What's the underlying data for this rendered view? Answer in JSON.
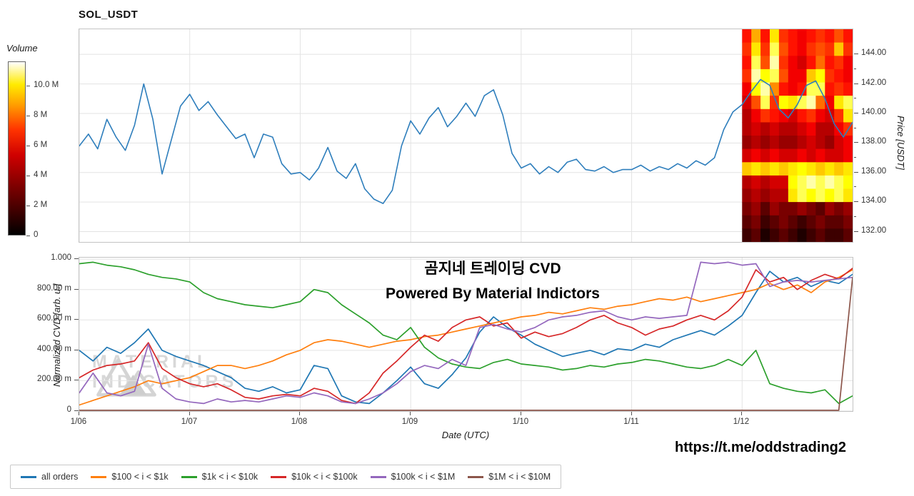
{
  "title": "SOL_USDT",
  "overlay": {
    "line1": "곰지네 트레이딩 CVD",
    "line2": "Powered By Material Indictors"
  },
  "footer": {
    "url": "https://t.me/oddstrading2"
  },
  "watermark": {
    "line1": "MATERIAL",
    "line2": "INDICATORS"
  },
  "chart_data": [
    {
      "type": "line",
      "title": "SOL_USDT price with volume heatmap overlay",
      "ylabel": "Price [USDT]",
      "ylim": [
        131.3,
        145.7
      ],
      "ytick_labels": [
        "132.00",
        "134.00",
        "136.00",
        "138.00",
        "140.00",
        "142.00",
        "144.00"
      ],
      "ytick_values": [
        132,
        134,
        136,
        138,
        140,
        142,
        144
      ],
      "x_range_days": [
        0,
        7
      ],
      "grid": true,
      "series": [
        {
          "name": "SOL_USDT price",
          "color": "#2e7ebc",
          "values": [
            137.8,
            138.6,
            137.6,
            139.6,
            138.4,
            137.5,
            139.2,
            142.0,
            139.6,
            135.9,
            138.2,
            140.5,
            141.3,
            140.2,
            140.8,
            139.9,
            139.1,
            138.3,
            138.6,
            137.0,
            138.6,
            138.4,
            136.6,
            135.9,
            136.0,
            135.5,
            136.3,
            137.7,
            136.1,
            135.6,
            136.6,
            134.9,
            134.2,
            133.9,
            134.8,
            137.8,
            139.5,
            138.6,
            139.7,
            140.4,
            139.1,
            139.8,
            140.7,
            139.8,
            141.2,
            141.6,
            139.9,
            137.3,
            136.3,
            136.6,
            135.9,
            136.4,
            136.0,
            136.7,
            136.9,
            136.2,
            136.1,
            136.4,
            136.0,
            136.2,
            136.2,
            136.5,
            136.1,
            136.4,
            136.2,
            136.6,
            136.3,
            136.8,
            136.5,
            137.0,
            138.9,
            140.1,
            140.6,
            141.5,
            142.3,
            141.9,
            140.3,
            139.7,
            140.6,
            141.9,
            142.2,
            141.0,
            139.3,
            138.4,
            139.4
          ]
        }
      ],
      "volume_heatmap": {
        "legend_label": "Volume",
        "legend_tick_labels": [
          "0",
          "2 M",
          "4 M",
          "6 M",
          "8 M",
          "10.0 M"
        ],
        "legend_tick_values": [
          0,
          2,
          4,
          6,
          8,
          10
        ],
        "legend_scale_max": 11.6,
        "colormap": "hot",
        "x_day_start": 6,
        "x_day_end": 7,
        "rows": 16,
        "cols": 12,
        "intensity": [
          [
            0.45,
            0.7,
            0.45,
            0.8,
            0.5,
            0.45,
            0.4,
            0.45,
            0.5,
            0.45,
            0.55,
            0.45
          ],
          [
            0.5,
            0.8,
            0.5,
            0.9,
            0.55,
            0.45,
            0.4,
            0.5,
            0.55,
            0.5,
            0.75,
            0.5
          ],
          [
            0.45,
            0.9,
            0.55,
            0.95,
            0.5,
            0.4,
            0.35,
            0.45,
            0.6,
            0.45,
            0.5,
            0.4
          ],
          [
            0.5,
            0.95,
            0.85,
            0.9,
            0.55,
            0.4,
            0.4,
            0.75,
            0.85,
            0.5,
            0.45,
            0.4
          ],
          [
            0.4,
            0.85,
            0.95,
            0.65,
            0.45,
            0.4,
            0.45,
            0.9,
            0.9,
            0.45,
            0.5,
            0.45
          ],
          [
            0.35,
            0.55,
            0.9,
            0.5,
            0.85,
            0.8,
            0.9,
            0.95,
            0.6,
            0.4,
            0.8,
            0.9
          ],
          [
            0.3,
            0.4,
            0.5,
            0.45,
            0.4,
            0.35,
            0.45,
            0.5,
            0.4,
            0.35,
            0.5,
            0.8
          ],
          [
            0.3,
            0.35,
            0.3,
            0.35,
            0.3,
            0.3,
            0.35,
            0.4,
            0.3,
            0.3,
            0.4,
            0.5
          ],
          [
            0.25,
            0.3,
            0.25,
            0.3,
            0.25,
            0.25,
            0.3,
            0.35,
            0.3,
            0.25,
            0.35,
            0.4
          ],
          [
            0.35,
            0.4,
            0.35,
            0.4,
            0.35,
            0.35,
            0.4,
            0.35,
            0.4,
            0.35,
            0.35,
            0.4
          ],
          [
            0.75,
            0.8,
            0.75,
            0.8,
            0.75,
            0.8,
            0.85,
            0.8,
            0.75,
            0.8,
            0.75,
            0.8
          ],
          [
            0.3,
            0.35,
            0.3,
            0.35,
            0.35,
            0.85,
            0.9,
            0.95,
            0.9,
            0.95,
            0.9,
            0.85
          ],
          [
            0.25,
            0.3,
            0.25,
            0.3,
            0.3,
            0.8,
            0.9,
            0.85,
            0.9,
            0.85,
            0.9,
            0.8
          ],
          [
            0.2,
            0.25,
            0.15,
            0.25,
            0.2,
            0.2,
            0.25,
            0.2,
            0.15,
            0.25,
            0.2,
            0.25
          ],
          [
            0.15,
            0.2,
            0.1,
            0.15,
            0.2,
            0.15,
            0.1,
            0.15,
            0.2,
            0.15,
            0.15,
            0.2
          ],
          [
            0.1,
            0.15,
            0.05,
            0.1,
            0.15,
            0.1,
            0.05,
            0.1,
            0.15,
            0.1,
            0.1,
            0.15
          ]
        ]
      }
    },
    {
      "type": "line",
      "title": "Normalized CVD by order size",
      "ylabel": "Normalized CVD [arb. u.]",
      "xlabel": "Date (UTC)",
      "ylim": [
        0,
        1.01
      ],
      "ytick_labels": [
        "0",
        "200.00 m",
        "400.00 m",
        "600.00 m",
        "800.00 m",
        "1.000"
      ],
      "ytick_values": [
        0,
        0.2,
        0.4,
        0.6,
        0.8,
        1.0
      ],
      "xtick_labels": [
        "1/06",
        "1/07",
        "1/08",
        "1/09",
        "1/10",
        "1/11",
        "1/12"
      ],
      "xtick_days": [
        0,
        1,
        2,
        3,
        4,
        5,
        6
      ],
      "x_range_days": [
        0,
        7
      ],
      "grid": true,
      "series": [
        {
          "name": "all orders",
          "color": "#1f77b4",
          "values": [
            0.4,
            0.33,
            0.42,
            0.38,
            0.45,
            0.54,
            0.4,
            0.36,
            0.33,
            0.3,
            0.26,
            0.22,
            0.15,
            0.13,
            0.16,
            0.12,
            0.14,
            0.3,
            0.28,
            0.1,
            0.06,
            0.05,
            0.12,
            0.2,
            0.29,
            0.18,
            0.15,
            0.24,
            0.35,
            0.52,
            0.62,
            0.55,
            0.5,
            0.44,
            0.4,
            0.36,
            0.38,
            0.4,
            0.37,
            0.41,
            0.4,
            0.44,
            0.42,
            0.47,
            0.5,
            0.53,
            0.5,
            0.56,
            0.63,
            0.78,
            0.92,
            0.85,
            0.88,
            0.82,
            0.86,
            0.84,
            0.9
          ]
        },
        {
          "name": "$100 < i < $1k",
          "color": "#ff7f0e",
          "values": [
            0.04,
            0.07,
            0.1,
            0.13,
            0.16,
            0.2,
            0.18,
            0.2,
            0.22,
            0.26,
            0.3,
            0.3,
            0.28,
            0.3,
            0.33,
            0.37,
            0.4,
            0.45,
            0.47,
            0.46,
            0.44,
            0.42,
            0.44,
            0.46,
            0.47,
            0.49,
            0.5,
            0.52,
            0.54,
            0.56,
            0.58,
            0.6,
            0.62,
            0.63,
            0.65,
            0.64,
            0.66,
            0.68,
            0.67,
            0.69,
            0.7,
            0.72,
            0.74,
            0.73,
            0.75,
            0.72,
            0.74,
            0.76,
            0.78,
            0.8,
            0.84,
            0.8,
            0.83,
            0.78,
            0.85,
            0.88,
            0.93
          ]
        },
        {
          "name": "$1k < i < $10k",
          "color": "#2ca02c",
          "values": [
            0.97,
            0.98,
            0.96,
            0.95,
            0.93,
            0.9,
            0.88,
            0.87,
            0.85,
            0.78,
            0.74,
            0.72,
            0.7,
            0.69,
            0.68,
            0.7,
            0.72,
            0.8,
            0.78,
            0.7,
            0.64,
            0.58,
            0.5,
            0.47,
            0.55,
            0.42,
            0.35,
            0.31,
            0.29,
            0.28,
            0.32,
            0.34,
            0.31,
            0.3,
            0.29,
            0.27,
            0.28,
            0.3,
            0.29,
            0.31,
            0.32,
            0.34,
            0.33,
            0.31,
            0.29,
            0.28,
            0.3,
            0.34,
            0.3,
            0.4,
            0.18,
            0.15,
            0.13,
            0.12,
            0.14,
            0.05,
            0.1
          ]
        },
        {
          "name": "$10k < i < $100k",
          "color": "#d62728",
          "values": [
            0.22,
            0.27,
            0.3,
            0.31,
            0.33,
            0.45,
            0.28,
            0.22,
            0.18,
            0.16,
            0.18,
            0.14,
            0.09,
            0.08,
            0.1,
            0.11,
            0.1,
            0.15,
            0.13,
            0.07,
            0.05,
            0.12,
            0.25,
            0.33,
            0.42,
            0.5,
            0.46,
            0.55,
            0.6,
            0.62,
            0.56,
            0.58,
            0.48,
            0.52,
            0.49,
            0.51,
            0.55,
            0.6,
            0.63,
            0.58,
            0.55,
            0.5,
            0.54,
            0.56,
            0.6,
            0.63,
            0.6,
            0.66,
            0.75,
            0.93,
            0.85,
            0.88,
            0.8,
            0.86,
            0.9,
            0.87,
            0.94
          ]
        },
        {
          "name": "$100k < i < $1M",
          "color": "#9467bd",
          "values": [
            0.12,
            0.25,
            0.12,
            0.1,
            0.13,
            0.44,
            0.15,
            0.08,
            0.06,
            0.05,
            0.08,
            0.06,
            0.07,
            0.06,
            0.08,
            0.1,
            0.09,
            0.12,
            0.1,
            0.06,
            0.05,
            0.08,
            0.12,
            0.18,
            0.26,
            0.3,
            0.28,
            0.34,
            0.3,
            0.55,
            0.57,
            0.54,
            0.52,
            0.55,
            0.6,
            0.62,
            0.63,
            0.65,
            0.66,
            0.62,
            0.6,
            0.62,
            0.61,
            0.62,
            0.63,
            0.98,
            0.97,
            0.98,
            0.96,
            0.97,
            0.82,
            0.85,
            0.86,
            0.85,
            0.86,
            0.87,
            0.88
          ]
        },
        {
          "name": "$1M < i < $10M",
          "color": "#8c564b",
          "values": [
            0.005,
            0.005,
            0.005,
            0.005,
            0.005,
            0.005,
            0.005,
            0.005,
            0.005,
            0.005,
            0.005,
            0.005,
            0.005,
            0.005,
            0.005,
            0.005,
            0.005,
            0.005,
            0.005,
            0.005,
            0.005,
            0.005,
            0.005,
            0.005,
            0.005,
            0.005,
            0.005,
            0.005,
            0.005,
            0.005,
            0.005,
            0.005,
            0.005,
            0.005,
            0.005,
            0.005,
            0.005,
            0.005,
            0.005,
            0.005,
            0.005,
            0.005,
            0.005,
            0.005,
            0.005,
            0.005,
            0.005,
            0.005,
            0.005,
            0.005,
            0.005,
            0.005,
            0.005,
            0.005,
            0.005,
            0.005,
            0.88
          ]
        }
      ]
    }
  ]
}
